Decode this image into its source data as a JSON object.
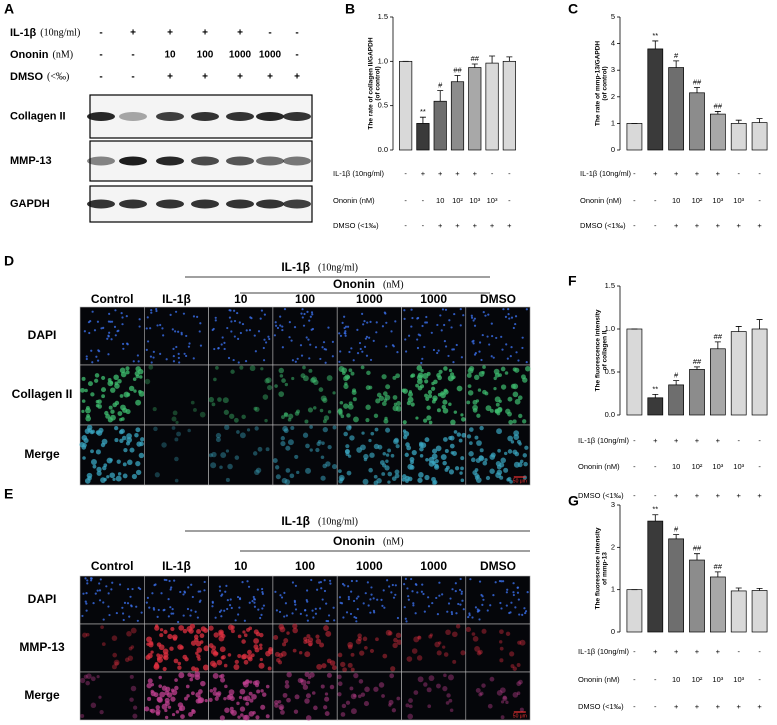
{
  "blot": {
    "panel": "A",
    "treatments": [
      {
        "label": "IL-1β",
        "unit": "(10ng/ml)",
        "values": [
          "-",
          "+",
          "+",
          "+",
          "+",
          "-",
          "-"
        ]
      },
      {
        "label": "Ononin",
        "unit": "(nM)",
        "values": [
          "-",
          "-",
          "10",
          "100",
          "1000",
          "1000",
          "-"
        ]
      },
      {
        "label": "DMSO",
        "unit": "(<‰)",
        "values": [
          "-",
          "-",
          "+",
          "+",
          "+",
          "+",
          "+"
        ]
      }
    ],
    "bands": [
      "Collagen II",
      "MMP-13",
      "GAPDH"
    ]
  },
  "fluorescence": [
    {
      "panel": "D",
      "treatment": "IL-1β",
      "treatment_unit": "(10ng/ml)",
      "compound": "Ononin",
      "compound_unit": "(nM)",
      "columns": [
        "Control",
        "IL-1β",
        "10",
        "100",
        "1000",
        "1000",
        "DMSO"
      ],
      "rows": [
        "DAPI",
        "Collagen II",
        "Merge"
      ],
      "scale_bar": "50 μm"
    },
    {
      "panel": "E",
      "treatment": "IL-1β",
      "treatment_unit": "(10ng/ml)",
      "compound": "Ononin",
      "compound_unit": "(nM)",
      "columns": [
        "Control",
        "IL-1β",
        "10",
        "100",
        "1000",
        "1000",
        "DMSO"
      ],
      "rows": [
        "DAPI",
        "MMP-13",
        "Merge"
      ],
      "scale_bar": "50 μm"
    }
  ],
  "chart_data": [
    {
      "type": "bar",
      "panel": "B",
      "ylabel": [
        "The rate of collagen II/GAPDH",
        "(of control)"
      ],
      "categories": [
        null,
        null,
        null,
        null,
        null,
        null,
        null
      ],
      "values": [
        1,
        0.3,
        0.55,
        0.77,
        0.93,
        0.98,
        1.0
      ],
      "errors": [
        0,
        0.07,
        0.12,
        0.07,
        0.04,
        0.08,
        0.05
      ],
      "annotations": [
        null,
        "**",
        "#",
        "##",
        "##",
        null,
        null
      ],
      "colors": [
        "#d9d9d9",
        "#3a3a3a",
        "#6e6e6e",
        "#8c8c8c",
        "#a8a8a8",
        "#d9d9d9",
        "#d9d9d9"
      ],
      "ylim": [
        0,
        1.5
      ],
      "yticks": [
        {
          "value": 0,
          "label": "0.0"
        },
        {
          "value": 0.5,
          "label": "0.5"
        },
        {
          "value": 1,
          "label": "1.0"
        },
        {
          "value": 1.5,
          "label": "1.5"
        }
      ],
      "treatments": [
        {
          "label": "IL-1β (10ng/ml)",
          "values": [
            "-",
            "+",
            "+",
            "+",
            "+",
            "-",
            "-"
          ]
        },
        {
          "label": "Ononin (nM)",
          "values": [
            "-",
            "-",
            "10",
            "10²",
            "10³",
            "10³",
            "-"
          ]
        },
        {
          "label": "DMSO (<1‰)",
          "values": [
            "-",
            "-",
            "+",
            "+",
            "+",
            "+",
            "+"
          ]
        }
      ]
    },
    {
      "type": "bar",
      "panel": "C",
      "ylabel": [
        "The rate of mmp-13/GAPDH",
        "(of control)"
      ],
      "categories": [
        null,
        null,
        null,
        null,
        null,
        null,
        null
      ],
      "values": [
        1,
        3.8,
        3.1,
        2.15,
        1.35,
        1.0,
        1.03
      ],
      "errors": [
        0,
        0.3,
        0.25,
        0.2,
        0.1,
        0.12,
        0.15
      ],
      "annotations": [
        null,
        "**",
        "#",
        "##",
        "##",
        null,
        null
      ],
      "colors": [
        "#d9d9d9",
        "#3a3a3a",
        "#6e6e6e",
        "#8c8c8c",
        "#a8a8a8",
        "#d9d9d9",
        "#d9d9d9"
      ],
      "ylim": [
        0,
        5
      ],
      "yticks": [
        0,
        1,
        2,
        3,
        4,
        5
      ],
      "treatments": [
        {
          "label": "IL-1β (10ng/ml)",
          "values": [
            "-",
            "+",
            "+",
            "+",
            "+",
            "-",
            "-"
          ]
        },
        {
          "label": "Ononin (nM)",
          "values": [
            "-",
            "-",
            "10",
            "10²",
            "10³",
            "10³",
            "-"
          ]
        },
        {
          "label": "DMSO (<1‰)",
          "values": [
            "-",
            "-",
            "+",
            "+",
            "+",
            "+",
            "+"
          ]
        }
      ]
    },
    {
      "type": "bar",
      "panel": "F",
      "ylabel": [
        "The fluorescence intensity",
        "of collagen II"
      ],
      "categories": [
        null,
        null,
        null,
        null,
        null,
        null,
        null
      ],
      "values": [
        1,
        0.2,
        0.35,
        0.53,
        0.77,
        0.97,
        1.0
      ],
      "errors": [
        0,
        0.04,
        0.05,
        0.03,
        0.08,
        0.06,
        0.11
      ],
      "annotations": [
        null,
        "**",
        "#",
        "##",
        "##",
        null,
        null
      ],
      "colors": [
        "#d9d9d9",
        "#3a3a3a",
        "#6e6e6e",
        "#8c8c8c",
        "#a8a8a8",
        "#d9d9d9",
        "#d9d9d9"
      ],
      "ylim": [
        0,
        1.5
      ],
      "yticks": [
        {
          "value": 0,
          "label": "0.0"
        },
        {
          "value": 0.5,
          "label": "0.5"
        },
        {
          "value": 1,
          "label": "1.0"
        },
        {
          "value": 1.5,
          "label": "1.5"
        }
      ],
      "treatments": [
        {
          "label": "IL-1β (10ng/ml)",
          "values": [
            "-",
            "+",
            "+",
            "+",
            "+",
            "-",
            "-"
          ]
        },
        {
          "label": "Ononin (nM)",
          "values": [
            "-",
            "-",
            "10",
            "10²",
            "10³",
            "10³",
            "-"
          ]
        },
        {
          "label": "DMSO (<1‰)",
          "values": [
            "-",
            "-",
            "+",
            "+",
            "+",
            "+",
            "+"
          ]
        }
      ]
    },
    {
      "type": "bar",
      "panel": "G",
      "ylabel": [
        "The fluorescence intensity",
        "of mmp-13"
      ],
      "categories": [
        null,
        null,
        null,
        null,
        null,
        null,
        null
      ],
      "values": [
        1,
        2.62,
        2.2,
        1.7,
        1.3,
        0.97,
        0.98
      ],
      "errors": [
        0,
        0.15,
        0.1,
        0.15,
        0.12,
        0.07,
        0.05
      ],
      "annotations": [
        null,
        "**",
        "#",
        "##",
        "##",
        null,
        null
      ],
      "colors": [
        "#d9d9d9",
        "#3a3a3a",
        "#6e6e6e",
        "#8c8c8c",
        "#a8a8a8",
        "#d9d9d9",
        "#d9d9d9"
      ],
      "ylim": [
        0,
        3
      ],
      "yticks": [
        0,
        1,
        2,
        3
      ],
      "treatments": [
        {
          "label": "IL-1β (10ng/ml)",
          "values": [
            "-",
            "+",
            "+",
            "+",
            "+",
            "-",
            "-"
          ]
        },
        {
          "label": "Ononin (nM)",
          "values": [
            "-",
            "-",
            "10",
            "10²",
            "10³",
            "10³",
            "-"
          ]
        },
        {
          "label": "DMSO (<1‰)",
          "values": [
            "-",
            "-",
            "+",
            "+",
            "+",
            "+",
            "+"
          ]
        }
      ]
    }
  ]
}
